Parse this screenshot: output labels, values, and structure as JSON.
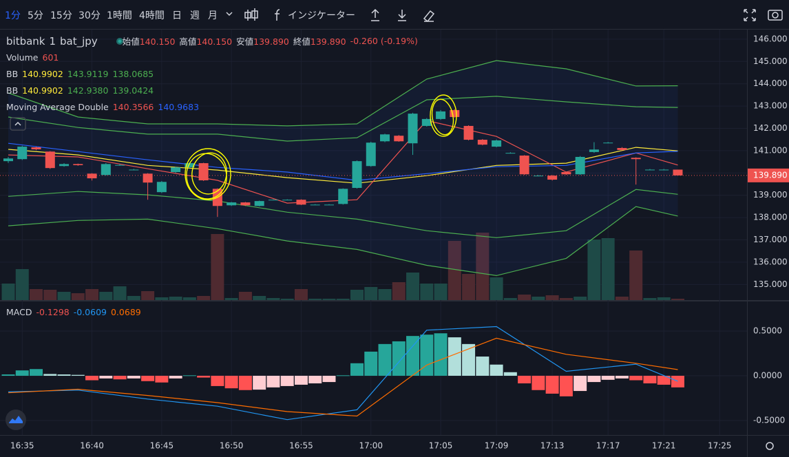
{
  "toolbar": {
    "intervals": [
      "1分",
      "5分",
      "15分",
      "30分",
      "1時間",
      "4時間",
      "日",
      "週",
      "月"
    ],
    "indicators": "インジケーター"
  },
  "legend": {
    "exchange": "bitbank",
    "interval": "1",
    "pair": "bat_jpy",
    "ohlc": [
      {
        "label": "始値",
        "value": "140.150"
      },
      {
        "label": "高値",
        "value": "140.150"
      },
      {
        "label": "安値",
        "value": "139.890"
      },
      {
        "label": "終値",
        "value": "139.890"
      }
    ],
    "change": "-0.260 (-0.19%)",
    "volume": {
      "label": "Volume",
      "value": "601"
    },
    "bb": [
      {
        "label": "BB",
        "values": [
          "140.9902",
          "143.9119",
          "138.0685"
        ]
      },
      {
        "label": "BB",
        "values": [
          "140.9902",
          "142.9380",
          "139.0424"
        ]
      }
    ],
    "ma": {
      "label": "Moving Average Double",
      "values": [
        "140.3566",
        "140.9683"
      ]
    },
    "macd": {
      "label": "MACD",
      "values": [
        "-0.1298",
        "-0.0609",
        "0.0689"
      ]
    }
  },
  "time_axis": [
    "16:35",
    "16:40",
    "16:45",
    "16:50",
    "16:55",
    "17:00",
    "17:05",
    "17:09",
    "17:13",
    "17:17",
    "17:21",
    "17:25"
  ],
  "chart_data": [
    {
      "type": "candlestick",
      "categories": [
        "16:34",
        "16:35",
        "16:36",
        "16:37",
        "16:38",
        "16:39",
        "16:40",
        "16:41",
        "16:42",
        "16:43",
        "16:44",
        "16:45",
        "16:46",
        "16:47",
        "16:48",
        "16:49",
        "16:50",
        "16:51",
        "16:52",
        "16:53",
        "16:54",
        "16:55",
        "16:56",
        "16:57",
        "16:58",
        "16:59",
        "17:00",
        "17:01",
        "17:02",
        "17:03",
        "17:04",
        "17:05",
        "17:06",
        "17:07",
        "17:08",
        "17:09",
        "17:10",
        "17:11",
        "17:12",
        "17:13",
        "17:14",
        "17:15",
        "17:16",
        "17:17",
        "17:18",
        "17:19",
        "17:20",
        "17:21",
        "17:22"
      ],
      "open": [
        140.53,
        140.62,
        141.15,
        140.96,
        140.31,
        140.4,
        139.97,
        139.91,
        140.36,
        140.15,
        139.97,
        139.14,
        140.04,
        140.25,
        140.44,
        139.29,
        138.55,
        138.68,
        138.52,
        138.8,
        138.8,
        138.8,
        138.58,
        138.58,
        138.61,
        139.33,
        140.31,
        141.42,
        141.67,
        141.33,
        142.11,
        142.42,
        142.82,
        142.11,
        141.49,
        141.18,
        140.9,
        140.78,
        139.88,
        139.88,
        140.04,
        139.94,
        140.94,
        141.36,
        141.12,
        140.68,
        140.15,
        140.15,
        140.15
      ],
      "high": [
        140.72,
        141.22,
        141.18,
        140.98,
        140.44,
        140.42,
        139.99,
        140.44,
        140.4,
        140.18,
        139.99,
        139.64,
        140.28,
        140.48,
        140.46,
        139.31,
        138.7,
        138.7,
        138.76,
        138.82,
        138.82,
        138.82,
        138.6,
        138.6,
        139.31,
        140.56,
        141.4,
        141.76,
        141.7,
        142.7,
        142.46,
        142.82,
        142.86,
        142.14,
        141.52,
        141.5,
        140.93,
        140.8,
        139.91,
        139.91,
        140.06,
        140.76,
        141.38,
        141.39,
        141.16,
        140.7,
        140.18,
        140.18,
        140.15
      ],
      "low": [
        140.45,
        140.58,
        141.02,
        140.18,
        140.28,
        140.32,
        139.66,
        139.88,
        140.32,
        140.12,
        138.8,
        139.1,
        140.0,
        140.22,
        139.64,
        138.03,
        138.52,
        138.52,
        138.5,
        138.78,
        138.78,
        138.56,
        138.56,
        138.56,
        138.58,
        139.3,
        140.28,
        141.38,
        141.4,
        140.81,
        142.08,
        142.38,
        142.48,
        141.46,
        141.24,
        141.15,
        140.87,
        139.91,
        139.85,
        139.66,
        139.91,
        139.91,
        140.9,
        141.33,
        141.0,
        139.48,
        140.12,
        140.12,
        139.89
      ],
      "close": [
        140.65,
        141.18,
        141.06,
        140.22,
        140.4,
        140.35,
        139.76,
        140.4,
        140.36,
        140.15,
        139.57,
        139.6,
        140.25,
        140.44,
        139.67,
        138.52,
        138.68,
        138.55,
        138.74,
        138.8,
        138.8,
        138.58,
        138.58,
        138.58,
        139.29,
        140.53,
        141.36,
        141.73,
        141.42,
        142.66,
        142.42,
        142.76,
        142.51,
        141.49,
        141.27,
        141.46,
        140.9,
        139.94,
        139.88,
        139.7,
        139.94,
        140.72,
        141.05,
        141.36,
        141.03,
        140.62,
        140.15,
        140.15,
        139.89
      ],
      "volume": [
        7200,
        13500,
        4800,
        4500,
        3600,
        3000,
        4800,
        3600,
        6000,
        1800,
        3900,
        1200,
        1500,
        1200,
        1800,
        28800,
        900,
        3600,
        1800,
        900,
        600,
        4800,
        600,
        600,
        600,
        4500,
        5700,
        4800,
        7800,
        12000,
        7200,
        7200,
        25800,
        11400,
        29400,
        9900,
        900,
        2400,
        1500,
        2100,
        900,
        1500,
        26400,
        27000,
        1500,
        21600,
        900,
        1200,
        601
      ],
      "colors": {
        "up": "#26a69a",
        "down": "#ef5350"
      },
      "volume_colors": {
        "up": "#1e4a47",
        "down": "#4f2a30"
      },
      "line_x": [
        "16:34",
        "16:39",
        "16:44",
        "16:49",
        "16:54",
        "16:59",
        "17:04",
        "17:09",
        "17:14",
        "17:19",
        "17:22"
      ],
      "lines": [
        {
          "color": "#4caf50",
          "values": [
            143.59,
            142.51,
            142.2,
            142.2,
            142.11,
            142.2,
            144.21,
            145.04,
            144.67,
            143.9,
            143.9119
          ]
        },
        {
          "color": "#4caf50",
          "values": [
            142.51,
            142.04,
            141.74,
            141.74,
            141.43,
            141.58,
            143.28,
            143.44,
            143.19,
            142.97,
            142.938
          ]
        },
        {
          "color": "#ffeb3b",
          "values": [
            141.06,
            140.81,
            140.34,
            140.13,
            139.79,
            139.54,
            139.88,
            140.34,
            140.44,
            141.15,
            140.9902
          ]
        },
        {
          "color": "#4caf50",
          "values": [
            138.95,
            139.17,
            139.02,
            138.74,
            138.24,
            137.93,
            137.41,
            137.1,
            137.41,
            139.26,
            139.0424
          ]
        },
        {
          "color": "#4caf50",
          "values": [
            137.63,
            137.87,
            137.93,
            137.5,
            136.95,
            136.57,
            135.86,
            135.4,
            136.17,
            138.49,
            138.0685
          ]
        },
        {
          "color": "#ef5350",
          "values": [
            140.81,
            140.72,
            140.19,
            139.67,
            138.65,
            138.8,
            142.35,
            141.64,
            140.04,
            140.9,
            140.3566
          ]
        },
        {
          "color": "#2962ff",
          "values": [
            141.33,
            140.96,
            140.59,
            140.25,
            140.04,
            139.67,
            139.97,
            140.28,
            140.34,
            140.9,
            140.9683
          ]
        }
      ],
      "ylim": [
        134.3,
        146.46
      ],
      "yticks": [
        {
          "value": 146,
          "label": "146.000"
        },
        {
          "value": 145,
          "label": "145.000"
        },
        {
          "value": 144,
          "label": "144.000"
        },
        {
          "value": 143,
          "label": "143.000"
        },
        {
          "value": 142,
          "label": "142.000"
        },
        {
          "value": 141,
          "label": "141.000"
        },
        {
          "value": 140,
          "label": "140.000"
        },
        {
          "value": 139,
          "label": "139.000"
        },
        {
          "value": 138,
          "label": "138.000"
        },
        {
          "value": 137,
          "label": "137.000"
        },
        {
          "value": 136,
          "label": "136.000"
        },
        {
          "value": 135,
          "label": "135.000"
        }
      ],
      "last_price": {
        "value": 139.89,
        "label": "139.890"
      },
      "grid": true
    },
    {
      "type": "macd",
      "values": [
        0.015,
        0.06,
        0.075,
        0.02,
        0.015,
        0.01,
        -0.05,
        -0.03,
        -0.04,
        -0.03,
        -0.06,
        -0.075,
        -0.03,
        0.005,
        -0.02,
        -0.115,
        -0.14,
        -0.16,
        -0.155,
        -0.13,
        -0.115,
        -0.1,
        -0.085,
        -0.07,
        0.005,
        0.14,
        0.27,
        0.355,
        0.385,
        0.445,
        0.46,
        0.475,
        0.43,
        0.355,
        0.215,
        0.125,
        0.04,
        -0.085,
        -0.16,
        -0.2,
        -0.23,
        -0.17,
        -0.07,
        -0.045,
        -0.03,
        -0.05,
        -0.085,
        -0.1,
        -0.1298
      ],
      "colors": {
        "up_grow": "#26a69a",
        "up_fall": "#b2dfdb",
        "down_grow": "#ff5252",
        "down_fall": "#ffcdd2"
      },
      "lines": [
        {
          "color": "#2196f3",
          "values": [
            -0.18,
            -0.16,
            -0.26,
            -0.34,
            -0.49,
            -0.38,
            0.51,
            0.55,
            0.05,
            0.13,
            -0.0609
          ]
        },
        {
          "color": "#ff6d00",
          "values": [
            -0.19,
            -0.15,
            -0.22,
            -0.3,
            -0.4,
            -0.45,
            0.12,
            0.42,
            0.24,
            0.14,
            0.0689
          ]
        }
      ],
      "ylim": [
        -0.662,
        0.831
      ],
      "yticks": [
        {
          "value": 0.5,
          "label": "0.5000"
        },
        {
          "value": 0,
          "label": "0.0000"
        },
        {
          "value": -0.5,
          "label": "-0.5000"
        }
      ]
    }
  ]
}
